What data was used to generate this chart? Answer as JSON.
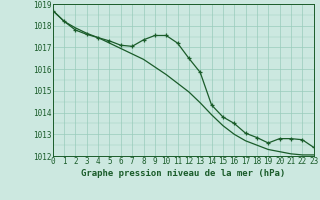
{
  "title": "Graphe pression niveau de la mer (hPa)",
  "bg_color": "#cce8e0",
  "grid_color": "#99ccbb",
  "line_color": "#1a5c2a",
  "xlim": [
    0,
    23
  ],
  "ylim": [
    1012,
    1019
  ],
  "xticks": [
    0,
    1,
    2,
    3,
    4,
    5,
    6,
    7,
    8,
    9,
    10,
    11,
    12,
    13,
    14,
    15,
    16,
    17,
    18,
    19,
    20,
    21,
    22,
    23
  ],
  "yticks": [
    1012,
    1013,
    1014,
    1015,
    1016,
    1017,
    1018,
    1019
  ],
  "series_marked_x": [
    0,
    1,
    2,
    3,
    4,
    5,
    6,
    7,
    8,
    9,
    10,
    11,
    12,
    13,
    14,
    15,
    16,
    17,
    18,
    19,
    20,
    21,
    22,
    23
  ],
  "series_marked_y": [
    1018.7,
    1018.2,
    1017.8,
    1017.6,
    1017.45,
    1017.3,
    1017.1,
    1017.05,
    1017.35,
    1017.55,
    1017.55,
    1017.2,
    1016.5,
    1015.85,
    1014.35,
    1013.8,
    1013.5,
    1013.05,
    1012.85,
    1012.6,
    1012.8,
    1012.8,
    1012.75,
    1012.4
  ],
  "series_plain_x": [
    0,
    1,
    2,
    3,
    4,
    5,
    6,
    7,
    8,
    9,
    10,
    11,
    12,
    13,
    14,
    15,
    16,
    17,
    18,
    19,
    20,
    21,
    22,
    23
  ],
  "series_plain_y": [
    1018.7,
    1018.2,
    1017.9,
    1017.65,
    1017.45,
    1017.2,
    1016.95,
    1016.7,
    1016.45,
    1016.1,
    1015.75,
    1015.35,
    1014.95,
    1014.45,
    1013.9,
    1013.4,
    1013.0,
    1012.7,
    1012.5,
    1012.3,
    1012.2,
    1012.1,
    1012.05,
    1012.05
  ]
}
